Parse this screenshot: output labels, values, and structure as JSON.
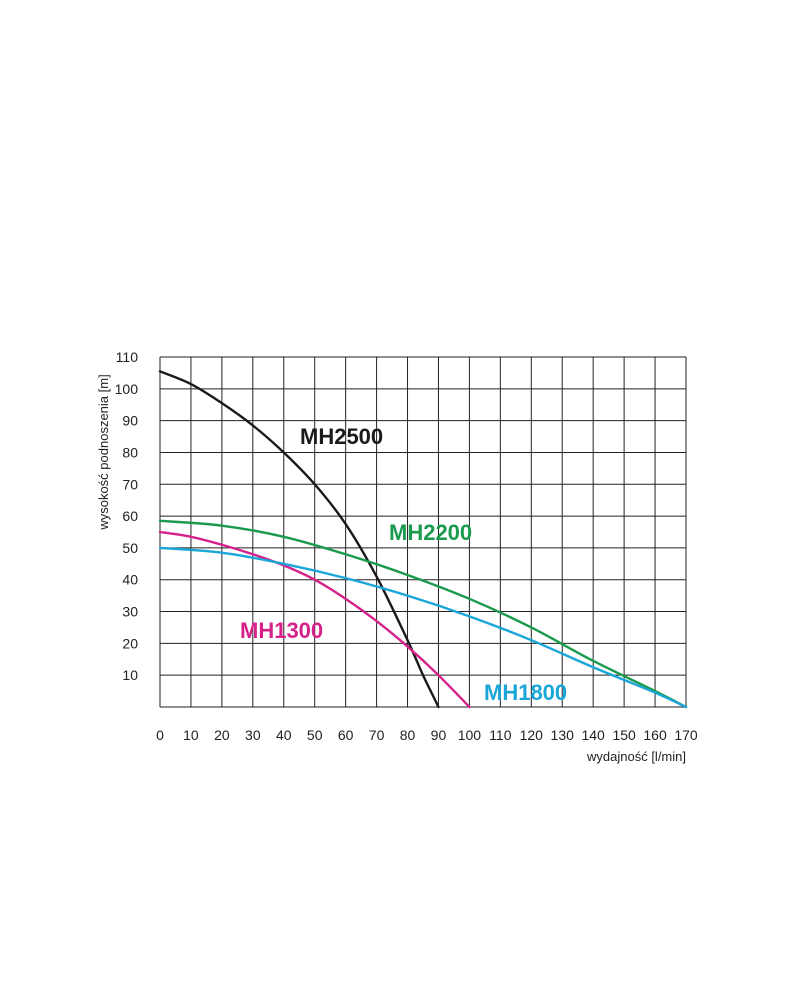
{
  "chart_data": {
    "type": "line",
    "xlabel": "wydajność [l/min]",
    "ylabel": "wysokość podnoszenia [m]",
    "xlim": [
      0,
      170
    ],
    "ylim": [
      0,
      110
    ],
    "x_ticks": [
      0,
      10,
      20,
      30,
      40,
      50,
      60,
      70,
      80,
      90,
      100,
      110,
      120,
      130,
      140,
      150,
      160,
      170
    ],
    "y_ticks": [
      10,
      20,
      30,
      40,
      50,
      60,
      70,
      80,
      90,
      100,
      110
    ],
    "grid": true,
    "series": [
      {
        "name": "MH2500",
        "color": "#1a1a1a",
        "x": [
          0,
          10,
          20,
          30,
          40,
          50,
          60,
          70,
          80,
          85,
          88,
          90
        ],
        "y": [
          105.5,
          101.5,
          95.5,
          88.5,
          80,
          70,
          57.5,
          41,
          21,
          10,
          4,
          0
        ]
      },
      {
        "name": "MH2200",
        "color": "#1a9a4c",
        "x": [
          0,
          20,
          40,
          60,
          80,
          100,
          120,
          140,
          160,
          170
        ],
        "y": [
          58.5,
          57,
          53.5,
          48,
          41.5,
          34,
          25,
          14.5,
          5,
          0
        ]
      },
      {
        "name": "MH1300",
        "color": "#d6218a",
        "x": [
          0,
          10,
          20,
          30,
          40,
          50,
          60,
          70,
          80,
          90,
          100
        ],
        "y": [
          55,
          53.5,
          51,
          48,
          44.5,
          40,
          34,
          27,
          19,
          10,
          0
        ]
      },
      {
        "name": "MH1800",
        "color": "#1aa6d8",
        "x": [
          0,
          20,
          40,
          60,
          80,
          100,
          120,
          140,
          160,
          170
        ],
        "y": [
          50,
          48.5,
          45,
          40.5,
          35,
          28.5,
          21,
          12.5,
          4.5,
          0
        ]
      }
    ]
  }
}
